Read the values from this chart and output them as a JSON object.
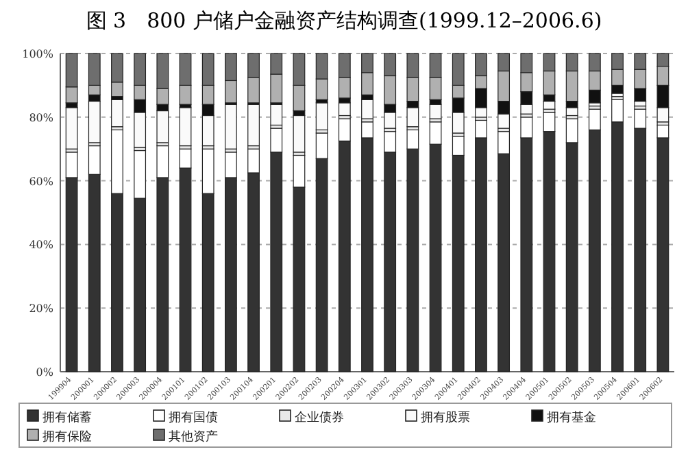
{
  "chart_data": {
    "type": "bar",
    "stacked": true,
    "title": "图 3　800 户储户金融资产结构调查(1999.12–2006.6)",
    "categories": [
      "199904",
      "200001",
      "200002",
      "200003",
      "200004",
      "200101",
      "200102",
      "200103",
      "200104",
      "200201",
      "200202",
      "200203",
      "200204",
      "200301",
      "200302",
      "200303",
      "200304",
      "200401",
      "200402",
      "200403",
      "200404",
      "200501",
      "200502",
      "200503",
      "200504",
      "200601",
      "200602"
    ],
    "series": [
      {
        "name": "拥有储蓄",
        "color": "#333333",
        "values": [
          61,
          62,
          56,
          54.5,
          61,
          64,
          56,
          61,
          62.5,
          69,
          58,
          67,
          72.5,
          73.5,
          69,
          70,
          71.5,
          68,
          73.5,
          68.5,
          73.5,
          75.5,
          72,
          76,
          78.5,
          76.5,
          73.5
        ]
      },
      {
        "name": "拥有国债",
        "color": "#ffffff",
        "values": [
          8,
          9,
          20,
          15,
          10,
          6,
          14,
          8,
          7.5,
          7.5,
          10,
          8,
          7,
          5,
          6.5,
          6,
          7,
          6,
          5.5,
          7,
          6.5,
          6,
          7.5,
          6.5,
          7,
          6,
          4
        ]
      },
      {
        "name": "企业债券",
        "color": "#e8e8e8",
        "values": [
          1,
          1,
          1,
          1,
          1,
          1,
          1,
          1,
          1,
          1,
          1,
          1,
          1,
          1,
          1,
          1,
          1,
          1,
          1,
          1,
          1,
          1,
          1,
          1,
          1,
          1,
          1
        ]
      },
      {
        "name": "拥有股票",
        "color": "#fafafa",
        "values": [
          13,
          13,
          8.5,
          11,
          10,
          12,
          9.5,
          14,
          13,
          6.5,
          11.5,
          8.5,
          4,
          6,
          5,
          6,
          4.5,
          6.5,
          3,
          4.5,
          3,
          2.5,
          2.5,
          1,
          1,
          1.5,
          4.5
        ]
      },
      {
        "name": "拥有基金",
        "color": "#111111",
        "values": [
          1.5,
          2,
          1,
          4,
          2,
          1,
          3.5,
          0.5,
          0.5,
          0.5,
          1.5,
          1,
          1.5,
          1.5,
          2.5,
          2,
          1.5,
          4.5,
          6,
          4,
          4,
          2,
          2,
          4,
          2.5,
          4,
          7
        ]
      },
      {
        "name": "拥有保险",
        "color": "#b0b0b0",
        "values": [
          5,
          3,
          4.5,
          4.5,
          5,
          6,
          6,
          7,
          8,
          9,
          8,
          6.5,
          6.5,
          7,
          9,
          7.5,
          7,
          4,
          4,
          9.5,
          6,
          7.5,
          9.5,
          6,
          5,
          6,
          6
        ]
      },
      {
        "name": "其他资产",
        "color": "#6e6e6e",
        "values": [
          10.5,
          10,
          9,
          10,
          11,
          10,
          10,
          8.5,
          7.5,
          6.5,
          10,
          8,
          7.5,
          6,
          7,
          7.5,
          7.5,
          10,
          7,
          5.5,
          6,
          5.5,
          5.5,
          5.5,
          5,
          5,
          4
        ]
      }
    ],
    "ylim": [
      0,
      100
    ],
    "yticks": [
      {
        "value": 0,
        "label": "0%"
      },
      {
        "value": 20,
        "label": "20%"
      },
      {
        "value": 40,
        "label": "40%"
      },
      {
        "value": 60,
        "label": "60%"
      },
      {
        "value": 80,
        "label": "80%"
      },
      {
        "value": 100,
        "label": "100%"
      }
    ],
    "grid": "y",
    "legend": "bottom"
  }
}
